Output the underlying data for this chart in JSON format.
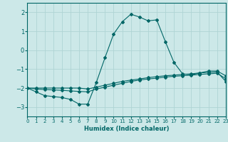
{
  "xlabel": "Humidex (Indice chaleur)",
  "background_color": "#cce8e8",
  "grid_color": "#afd4d4",
  "line_color": "#006666",
  "xlim": [
    0,
    23
  ],
  "ylim": [
    -3.5,
    2.5
  ],
  "yticks": [
    -3,
    -2,
    -1,
    0,
    1,
    2
  ],
  "xticks": [
    0,
    1,
    2,
    3,
    4,
    5,
    6,
    7,
    8,
    9,
    10,
    11,
    12,
    13,
    14,
    15,
    16,
    17,
    18,
    19,
    20,
    21,
    22,
    23
  ],
  "series1_x": [
    0,
    1,
    2,
    3,
    4,
    5,
    6,
    7,
    8,
    9,
    10,
    11,
    12,
    13,
    14,
    15,
    16,
    17,
    18,
    19,
    20,
    21,
    22,
    23
  ],
  "series1_y": [
    -2.0,
    -2.2,
    -2.4,
    -2.45,
    -2.5,
    -2.6,
    -2.85,
    -2.85,
    -1.7,
    -0.4,
    0.85,
    1.5,
    1.9,
    1.75,
    1.55,
    1.6,
    0.45,
    -0.65,
    -1.25,
    -1.3,
    -1.2,
    -1.1,
    -1.1,
    -1.35
  ],
  "series2_x": [
    0,
    1,
    2,
    3,
    4,
    5,
    6,
    7,
    8,
    9,
    10,
    11,
    12,
    13,
    14,
    15,
    16,
    17,
    18,
    19,
    20,
    21,
    22,
    23
  ],
  "series2_y": [
    -2.0,
    -2.05,
    -2.08,
    -2.1,
    -2.12,
    -2.15,
    -2.18,
    -2.2,
    -2.05,
    -1.95,
    -1.85,
    -1.75,
    -1.65,
    -1.58,
    -1.52,
    -1.48,
    -1.42,
    -1.38,
    -1.35,
    -1.32,
    -1.28,
    -1.25,
    -1.22,
    -1.5
  ],
  "series3_x": [
    0,
    1,
    2,
    3,
    4,
    5,
    6,
    7,
    8,
    9,
    10,
    11,
    12,
    13,
    14,
    15,
    16,
    17,
    18,
    19,
    20,
    21,
    22,
    23
  ],
  "series3_y": [
    -2.0,
    -2.0,
    -2.0,
    -2.0,
    -2.0,
    -2.0,
    -2.0,
    -2.05,
    -1.95,
    -1.85,
    -1.75,
    -1.65,
    -1.58,
    -1.52,
    -1.45,
    -1.4,
    -1.35,
    -1.32,
    -1.28,
    -1.25,
    -1.2,
    -1.18,
    -1.15,
    -1.65
  ]
}
